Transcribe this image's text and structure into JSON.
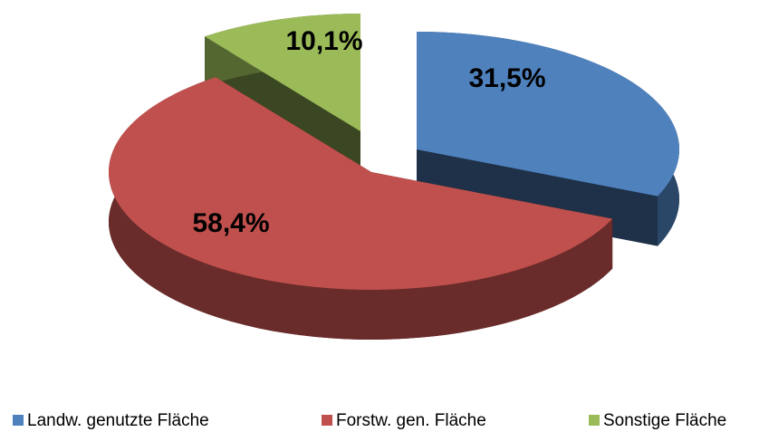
{
  "chart_data": {
    "type": "pie",
    "categories": [
      "Landw. genutzte Fläche",
      "Forstw. gen. Fläche",
      "Sonstige Fläche"
    ],
    "values": [
      31.5,
      58.4,
      10.1
    ],
    "value_labels": [
      "31,5%",
      "58,4%",
      "10,1%"
    ],
    "colors": [
      "#4f81bd",
      "#c0504d",
      "#9bbb59"
    ],
    "legend": "bottom"
  }
}
